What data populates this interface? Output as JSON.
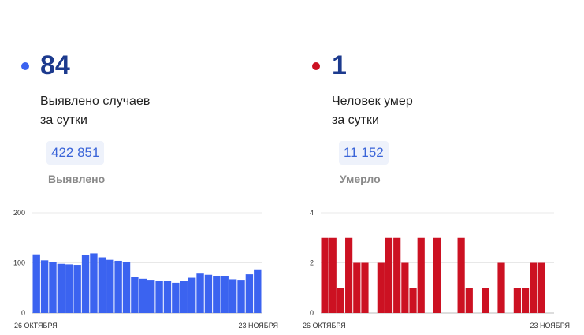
{
  "left": {
    "count": "84",
    "label_line1": "Выявлено случаев",
    "label_line2": "за сутки",
    "total": "422 851",
    "total_label": "Выявлено",
    "dot_color": "#3b63f0"
  },
  "right": {
    "count": "1",
    "label_line1": "Человек умер",
    "label_line2": "за сутки",
    "total": "11 152",
    "total_label": "Умерло",
    "dot_color": "#cc1122"
  },
  "chart_data": [
    {
      "type": "bar",
      "color": "#3b63f0",
      "ylim": [
        0,
        200
      ],
      "yticks": [
        0,
        100,
        200
      ],
      "x_start_label": "26 ОКТЯБРЯ",
      "x_end_label": "23 НОЯБРЯ",
      "values": [
        117,
        105,
        101,
        98,
        97,
        96,
        115,
        119,
        111,
        106,
        104,
        101,
        72,
        68,
        66,
        64,
        63,
        60,
        63,
        70,
        80,
        76,
        74,
        74,
        67,
        66,
        77,
        87
      ],
      "grid": true
    },
    {
      "type": "bar",
      "color": "#cc1122",
      "ylim": [
        0,
        4
      ],
      "yticks": [
        0,
        2,
        4
      ],
      "x_start_label": "26 ОКТЯБРЯ",
      "x_end_label": "23 НОЯБРЯ",
      "values": [
        3,
        3,
        1,
        3,
        2,
        2,
        0,
        2,
        3,
        3,
        2,
        1,
        3,
        0,
        3,
        0,
        0,
        3,
        1,
        0,
        1,
        0,
        2,
        0,
        1,
        1,
        2,
        2
      ],
      "grid": true
    }
  ]
}
